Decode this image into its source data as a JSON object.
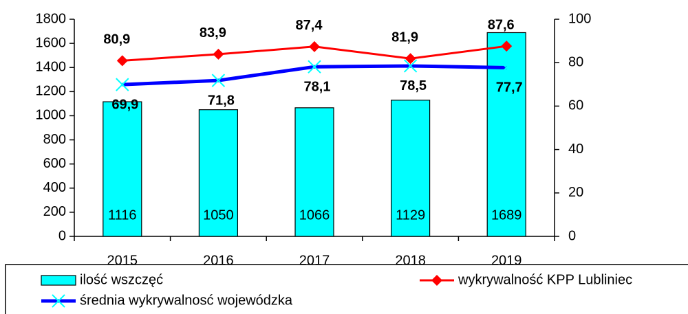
{
  "chart_data": {
    "type": "bar_line",
    "categories": [
      "2015",
      "2016",
      "2017",
      "2018",
      "2019"
    ],
    "series": [
      {
        "name": "ilość wszczęć",
        "type": "bar",
        "color": "#00ffff",
        "values": [
          1116,
          1050,
          1066,
          1129,
          1689
        ]
      },
      {
        "name": "wykrywalność KPP Lubliniec",
        "type": "line",
        "axis": "y2",
        "color": "#ff0000",
        "values": [
          80.9,
          83.9,
          87.4,
          81.9,
          87.6
        ],
        "value_labels": [
          "80,9",
          "83,9",
          "87,4",
          "81,9",
          "87,6"
        ]
      },
      {
        "name": "średnia wykrywalnosć wojewódzka",
        "type": "line",
        "axis": "y2",
        "color": "#0000ff",
        "values": [
          69.9,
          71.8,
          78.1,
          78.5,
          77.7
        ],
        "value_labels": [
          "69,9",
          "71,8",
          "78,1",
          "78,5",
          "77,7"
        ]
      }
    ],
    "ylim": [
      0,
      1800
    ],
    "yticks": [
      0,
      200,
      400,
      600,
      800,
      1000,
      1200,
      1400,
      1600,
      1800
    ],
    "y2lim": [
      0,
      100
    ],
    "y2ticks": [
      0,
      20,
      40,
      60,
      80,
      100
    ],
    "legend": "bottom"
  }
}
